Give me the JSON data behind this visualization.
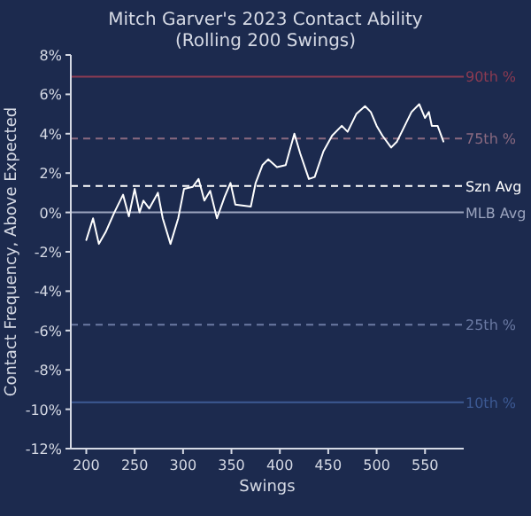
{
  "chart_data": {
    "type": "line",
    "title": "Mitch Garver's 2023 Contact Ability",
    "subtitle": "(Rolling 200 Swings)",
    "xlabel": "Swings",
    "ylabel": "Contact Frequency, Above Expected",
    "x": [
      200,
      207,
      213,
      220,
      229,
      238,
      244,
      250,
      255,
      259,
      265,
      274,
      279,
      287,
      295,
      301,
      310,
      316,
      322,
      328,
      335,
      343,
      349,
      354,
      370,
      375,
      382,
      388,
      397,
      406,
      415,
      421,
      430,
      436,
      445,
      454,
      464,
      470,
      479,
      488,
      494,
      500,
      506,
      515,
      521,
      527,
      536,
      544,
      550,
      554,
      557,
      563,
      569
    ],
    "series": [
      {
        "color": "#ffffff",
        "values": [
          -1.4,
          -0.3,
          -1.6,
          -1.0,
          0,
          0.9,
          -0.2,
          1.2,
          0,
          0.6,
          0.2,
          1.0,
          -0.3,
          -1.6,
          -0.3,
          1.2,
          1.3,
          1.7,
          0.6,
          1.1,
          -0.3,
          0.8,
          1.5,
          0.4,
          0.3,
          1.5,
          2.4,
          2.7,
          2.3,
          2.4,
          4.0,
          3.0,
          1.7,
          1.8,
          3.1,
          3.9,
          4.4,
          4.1,
          5.0,
          5.4,
          5.1,
          4.4,
          3.9,
          3.3,
          3.6,
          4.2,
          5.1,
          5.5,
          4.8,
          5.1,
          4.4,
          4.4,
          3.6
        ]
      }
    ],
    "xlim": [
      184,
      590
    ],
    "ylim": [
      -12,
      8
    ],
    "xticks": [
      200,
      250,
      300,
      350,
      400,
      450,
      500,
      550
    ],
    "yticks": [
      {
        "value": -12,
        "label": "-12%"
      },
      {
        "value": -10,
        "label": "-10%"
      },
      {
        "value": -8,
        "label": "-8%"
      },
      {
        "value": -6,
        "label": "-6%"
      },
      {
        "value": -4,
        "label": "-4%"
      },
      {
        "value": -2,
        "label": "-2%"
      },
      {
        "value": 0,
        "label": "0%"
      },
      {
        "value": 2,
        "label": "2%"
      },
      {
        "value": 4,
        "label": "4%"
      },
      {
        "value": 6,
        "label": "6%"
      },
      {
        "value": 8,
        "label": "8%"
      }
    ],
    "ref_lines": [
      {
        "axis": "y",
        "value": 6.9,
        "label": "90th %",
        "color": "#8c3b52",
        "line_style": "solid"
      },
      {
        "axis": "y",
        "value": 3.75,
        "label": "75th %",
        "color": "#8a6a80",
        "line_style": "dashed"
      },
      {
        "axis": "y",
        "value": 1.35,
        "label": "Szn Avg",
        "color": "#ffffff",
        "line_style": "dashed"
      },
      {
        "axis": "y",
        "value": 0,
        "label": "MLB Avg",
        "color": "#9aa3bd",
        "line_style": "solid"
      },
      {
        "axis": "y",
        "value": -5.7,
        "label": "25th %",
        "color": "#6b7aa3",
        "line_style": "dashed"
      },
      {
        "axis": "y",
        "value": -9.65,
        "label": "10th %",
        "color": "#3d5a94",
        "line_style": "solid"
      }
    ],
    "grid": false,
    "marker": "none",
    "line_style": "solid"
  }
}
